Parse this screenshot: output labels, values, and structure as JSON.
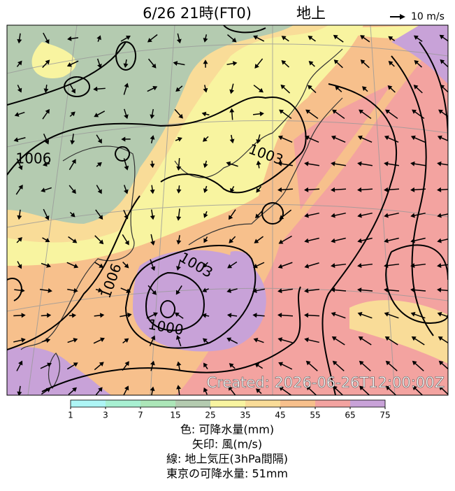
{
  "header": {
    "title": "6/26  21時(FT0)",
    "level": "地上",
    "reference_vector": "10 m/s"
  },
  "map": {
    "contour_labels": [
      "1006",
      "1006",
      "1003",
      "1003",
      "1000"
    ],
    "created": "Created: 2026-06-26T12:00:00Z"
  },
  "colorbar": {
    "ticks": [
      1,
      3,
      7,
      15,
      25,
      35,
      45,
      55,
      65,
      75
    ],
    "colors": [
      "#aef5f5",
      "#a8f0d2",
      "#ace6b8",
      "#b4cbb0",
      "#f8f4a0",
      "#f9dc98",
      "#f7c08c",
      "#f3a3a0",
      "#c8a2d8"
    ]
  },
  "legend": {
    "lines": [
      "色: 可降水量(mm)",
      "矢印: 風(m/s)",
      "線: 地上気圧(3hPa間隔)",
      "東京の可降水量: 51mm"
    ]
  }
}
